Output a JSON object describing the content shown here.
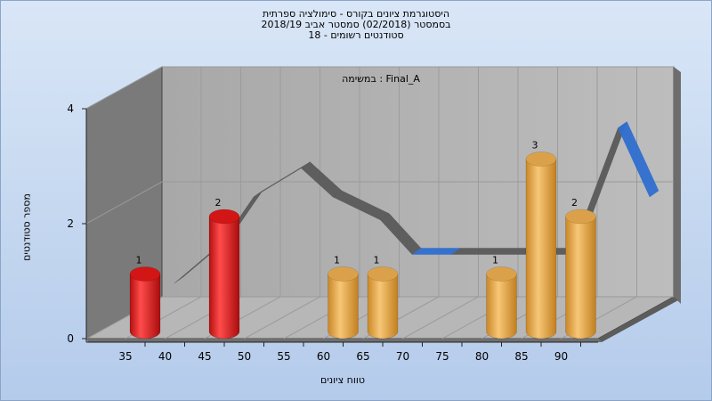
{
  "header": {
    "title_lines": [
      "היסטוגרמת ציונים בקורס - סימולציה ספרתית",
      "בסמסטר (02/2018) סמסטר אביב 2018/19",
      "סטודנטים רשומים - 18"
    ]
  },
  "chart_data": {
    "type": "bar",
    "annotation": "במשימה : Final_A",
    "xlabel": "טווח ציונים",
    "ylabel": "מספר סטודנטים",
    "x_ticks": [
      35,
      40,
      45,
      50,
      55,
      60,
      65,
      70,
      75,
      80,
      85,
      90
    ],
    "y_ticks": [
      0,
      2,
      4
    ],
    "ylim": [
      0,
      4
    ],
    "bars": [
      {
        "x": 35,
        "value": 1,
        "label": "1",
        "color": "#e31b1b"
      },
      {
        "x": 45,
        "value": 2,
        "label": "2",
        "color": "#e31b1b"
      },
      {
        "x": 60,
        "value": 1,
        "label": "1",
        "color": "#e8a94a"
      },
      {
        "x": 65,
        "value": 1,
        "label": "1",
        "color": "#e8a94a"
      },
      {
        "x": 80,
        "value": 1,
        "label": "1",
        "color": "#e8a94a"
      },
      {
        "x": 85,
        "value": 3,
        "label": "3",
        "color": "#e8a94a"
      },
      {
        "x": 90,
        "value": 2,
        "label": "2",
        "color": "#e8a94a"
      }
    ],
    "ribbon": {
      "x": [
        35,
        41,
        45,
        51,
        55,
        61,
        65,
        70,
        75,
        80,
        85,
        91,
        95
      ],
      "y": [
        0.5,
        1.2,
        2.0,
        2.5,
        2.0,
        1.6,
        1.0,
        1.0,
        1.0,
        1.0,
        1.0,
        3.2,
        2.0
      ],
      "colors": {
        "dark": "#5a5a5a",
        "blue": "#2f6fcf"
      }
    },
    "grid": true
  }
}
